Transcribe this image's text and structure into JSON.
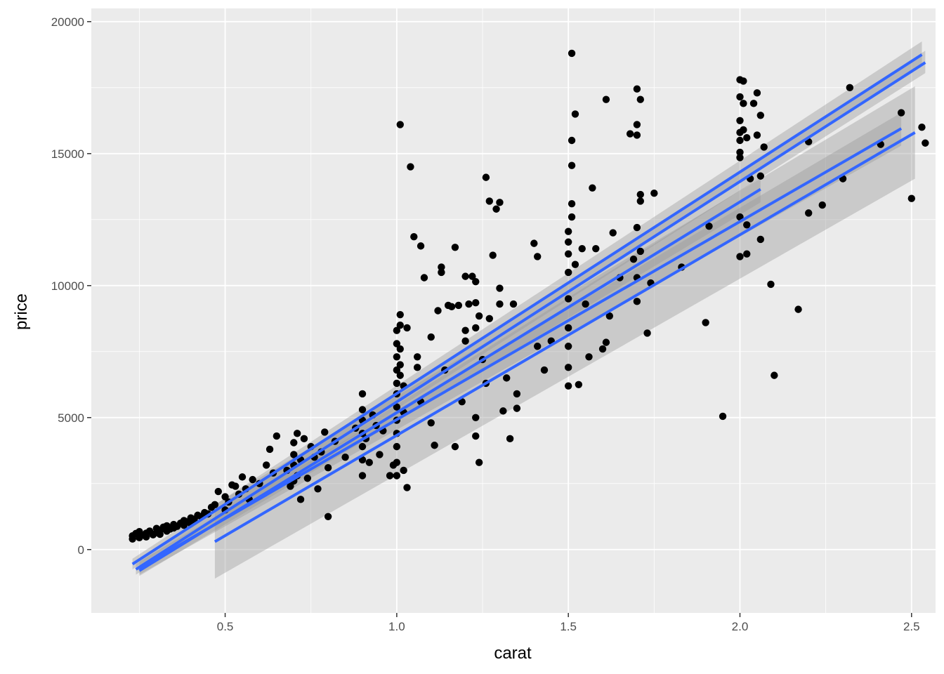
{
  "chart_data": {
    "type": "scatter",
    "title": "",
    "xlabel": "carat",
    "ylabel": "price",
    "xlim": [
      0.11,
      2.57
    ],
    "ylim": [
      -2400,
      20500
    ],
    "x_ticks": [
      0.5,
      1.0,
      1.5,
      2.0,
      2.5
    ],
    "x_tick_labels": [
      "0.5",
      "1.0",
      "1.5",
      "2.0",
      "2.5"
    ],
    "y_ticks": [
      0,
      5000,
      10000,
      15000,
      20000
    ],
    "y_tick_labels": [
      "0",
      "5000",
      "10000",
      "15000",
      "20000"
    ],
    "grid": true,
    "legend": "none",
    "colors": {
      "panel": "#ebebeb",
      "grid": "#ffffff",
      "points": "#000000",
      "fit_line": "#3366ff",
      "ribbon": "#999999"
    },
    "series": [
      {
        "type": "scatter",
        "points": [
          [
            0.23,
            400
          ],
          [
            0.23,
            520
          ],
          [
            0.24,
            610
          ],
          [
            0.25,
            450
          ],
          [
            0.25,
            680
          ],
          [
            0.26,
            550
          ],
          [
            0.27,
            480
          ],
          [
            0.27,
            620
          ],
          [
            0.28,
            700
          ],
          [
            0.29,
            560
          ],
          [
            0.3,
            650
          ],
          [
            0.3,
            800
          ],
          [
            0.31,
            720
          ],
          [
            0.31,
            580
          ],
          [
            0.32,
            850
          ],
          [
            0.33,
            700
          ],
          [
            0.33,
            900
          ],
          [
            0.34,
            780
          ],
          [
            0.35,
            950
          ],
          [
            0.35,
            820
          ],
          [
            0.36,
            880
          ],
          [
            0.37,
            1000
          ],
          [
            0.38,
            920
          ],
          [
            0.38,
            1100
          ],
          [
            0.39,
            1050
          ],
          [
            0.4,
            1200
          ],
          [
            0.4,
            980
          ],
          [
            0.41,
            1150
          ],
          [
            0.42,
            1300
          ],
          [
            0.43,
            1250
          ],
          [
            0.44,
            1400
          ],
          [
            0.45,
            1350
          ],
          [
            0.46,
            1600
          ],
          [
            0.47,
            1700
          ],
          [
            0.48,
            2200
          ],
          [
            0.5,
            1500
          ],
          [
            0.5,
            2000
          ],
          [
            0.51,
            1800
          ],
          [
            0.52,
            2450
          ],
          [
            0.53,
            2400
          ],
          [
            0.54,
            2100
          ],
          [
            0.55,
            2750
          ],
          [
            0.56,
            2300
          ],
          [
            0.57,
            1900
          ],
          [
            0.58,
            2650
          ],
          [
            0.6,
            2500
          ],
          [
            0.62,
            3200
          ],
          [
            0.63,
            3800
          ],
          [
            0.64,
            2900
          ],
          [
            0.65,
            4300
          ],
          [
            0.68,
            3000
          ],
          [
            0.69,
            2400
          ],
          [
            0.7,
            2600
          ],
          [
            0.7,
            3200
          ],
          [
            0.7,
            3600
          ],
          [
            0.7,
            4050
          ],
          [
            0.71,
            4400
          ],
          [
            0.71,
            2800
          ],
          [
            0.72,
            3400
          ],
          [
            0.72,
            1900
          ],
          [
            0.73,
            4200
          ],
          [
            0.74,
            2700
          ],
          [
            0.75,
            3900
          ],
          [
            0.76,
            3500
          ],
          [
            0.77,
            2300
          ],
          [
            0.78,
            3700
          ],
          [
            0.79,
            4450
          ],
          [
            0.8,
            1250
          ],
          [
            0.8,
            3100
          ],
          [
            0.82,
            4100
          ],
          [
            0.85,
            3500
          ],
          [
            0.88,
            4600
          ],
          [
            0.9,
            2800
          ],
          [
            0.9,
            3400
          ],
          [
            0.9,
            3900
          ],
          [
            0.9,
            4400
          ],
          [
            0.9,
            4900
          ],
          [
            0.9,
            5300
          ],
          [
            0.9,
            5900
          ],
          [
            0.91,
            4200
          ],
          [
            0.92,
            3300
          ],
          [
            0.93,
            5100
          ],
          [
            0.94,
            4700
          ],
          [
            0.95,
            3600
          ],
          [
            0.96,
            4500
          ],
          [
            0.98,
            2800
          ],
          [
            0.99,
            3200
          ],
          [
            1.0,
            2800
          ],
          [
            1.0,
            3300
          ],
          [
            1.0,
            3900
          ],
          [
            1.0,
            4400
          ],
          [
            1.0,
            4900
          ],
          [
            1.0,
            5400
          ],
          [
            1.0,
            5900
          ],
          [
            1.0,
            6300
          ],
          [
            1.0,
            6800
          ],
          [
            1.0,
            7300
          ],
          [
            1.0,
            7800
          ],
          [
            1.0,
            8300
          ],
          [
            1.01,
            8900
          ],
          [
            1.01,
            8500
          ],
          [
            1.01,
            7600
          ],
          [
            1.01,
            7000
          ],
          [
            1.01,
            6600
          ],
          [
            1.01,
            16100
          ],
          [
            1.02,
            3000
          ],
          [
            1.02,
            5200
          ],
          [
            1.02,
            6200
          ],
          [
            1.03,
            2350
          ],
          [
            1.03,
            8400
          ],
          [
            1.04,
            14500
          ],
          [
            1.05,
            11850
          ],
          [
            1.06,
            6900
          ],
          [
            1.06,
            7300
          ],
          [
            1.07,
            11500
          ],
          [
            1.07,
            5600
          ],
          [
            1.08,
            10300
          ],
          [
            1.1,
            8050
          ],
          [
            1.1,
            4800
          ],
          [
            1.11,
            3950
          ],
          [
            1.12,
            9050
          ],
          [
            1.13,
            10700
          ],
          [
            1.13,
            10500
          ],
          [
            1.14,
            6800
          ],
          [
            1.15,
            9250
          ],
          [
            1.16,
            9200
          ],
          [
            1.17,
            3900
          ],
          [
            1.17,
            11450
          ],
          [
            1.18,
            9250
          ],
          [
            1.19,
            5600
          ],
          [
            1.2,
            10350
          ],
          [
            1.2,
            8300
          ],
          [
            1.2,
            7900
          ],
          [
            1.21,
            9300
          ],
          [
            1.22,
            10350
          ],
          [
            1.23,
            10150
          ],
          [
            1.23,
            9350
          ],
          [
            1.23,
            8400
          ],
          [
            1.23,
            5000
          ],
          [
            1.23,
            4300
          ],
          [
            1.24,
            3300
          ],
          [
            1.24,
            8850
          ],
          [
            1.25,
            7200
          ],
          [
            1.26,
            14100
          ],
          [
            1.26,
            6300
          ],
          [
            1.27,
            13200
          ],
          [
            1.27,
            8750
          ],
          [
            1.28,
            11150
          ],
          [
            1.29,
            12900
          ],
          [
            1.3,
            13150
          ],
          [
            1.3,
            9900
          ],
          [
            1.3,
            9300
          ],
          [
            1.31,
            5250
          ],
          [
            1.32,
            6500
          ],
          [
            1.33,
            4200
          ],
          [
            1.34,
            9300
          ],
          [
            1.35,
            5900
          ],
          [
            1.35,
            5350
          ],
          [
            1.4,
            11600
          ],
          [
            1.41,
            11100
          ],
          [
            1.41,
            7700
          ],
          [
            1.43,
            6800
          ],
          [
            1.45,
            7900
          ],
          [
            1.5,
            6200
          ],
          [
            1.5,
            6900
          ],
          [
            1.5,
            7700
          ],
          [
            1.5,
            8400
          ],
          [
            1.5,
            9500
          ],
          [
            1.5,
            10500
          ],
          [
            1.5,
            11200
          ],
          [
            1.5,
            11650
          ],
          [
            1.5,
            12050
          ],
          [
            1.51,
            12600
          ],
          [
            1.51,
            13100
          ],
          [
            1.51,
            14550
          ],
          [
            1.51,
            15500
          ],
          [
            1.51,
            18800
          ],
          [
            1.52,
            16500
          ],
          [
            1.52,
            10800
          ],
          [
            1.53,
            6250
          ],
          [
            1.54,
            11400
          ],
          [
            1.55,
            9300
          ],
          [
            1.56,
            7300
          ],
          [
            1.57,
            13700
          ],
          [
            1.58,
            11400
          ],
          [
            1.6,
            7600
          ],
          [
            1.61,
            17050
          ],
          [
            1.61,
            7850
          ],
          [
            1.62,
            8850
          ],
          [
            1.63,
            12000
          ],
          [
            1.65,
            10300
          ],
          [
            1.68,
            15750
          ],
          [
            1.69,
            11000
          ],
          [
            1.7,
            9400
          ],
          [
            1.7,
            10300
          ],
          [
            1.7,
            12200
          ],
          [
            1.7,
            15700
          ],
          [
            1.7,
            16100
          ],
          [
            1.7,
            17450
          ],
          [
            1.71,
            17050
          ],
          [
            1.71,
            13450
          ],
          [
            1.71,
            13200
          ],
          [
            1.71,
            11300
          ],
          [
            1.73,
            8200
          ],
          [
            1.74,
            10100
          ],
          [
            1.75,
            13500
          ],
          [
            1.83,
            10700
          ],
          [
            1.9,
            8600
          ],
          [
            1.91,
            12250
          ],
          [
            1.95,
            5050
          ],
          [
            2.0,
            11100
          ],
          [
            2.0,
            12600
          ],
          [
            2.0,
            14850
          ],
          [
            2.0,
            15050
          ],
          [
            2.0,
            15500
          ],
          [
            2.0,
            15800
          ],
          [
            2.0,
            16250
          ],
          [
            2.0,
            17150
          ],
          [
            2.0,
            17800
          ],
          [
            2.01,
            17750
          ],
          [
            2.01,
            16900
          ],
          [
            2.01,
            15900
          ],
          [
            2.02,
            15600
          ],
          [
            2.02,
            12300
          ],
          [
            2.02,
            11200
          ],
          [
            2.03,
            14050
          ],
          [
            2.04,
            16900
          ],
          [
            2.05,
            17300
          ],
          [
            2.05,
            15700
          ],
          [
            2.06,
            14150
          ],
          [
            2.06,
            16450
          ],
          [
            2.06,
            11750
          ],
          [
            2.07,
            15250
          ],
          [
            2.09,
            10050
          ],
          [
            2.1,
            6600
          ],
          [
            2.17,
            9100
          ],
          [
            2.2,
            15450
          ],
          [
            2.2,
            12750
          ],
          [
            2.24,
            13050
          ],
          [
            2.3,
            14050
          ],
          [
            2.32,
            17500
          ],
          [
            2.41,
            15350
          ],
          [
            2.47,
            16550
          ],
          [
            2.5,
            13300
          ],
          [
            2.53,
            16000
          ],
          [
            2.54,
            15400
          ]
        ]
      },
      {
        "type": "line",
        "fit": "linear",
        "x": [
          0.23,
          2.53
        ],
        "y": [
          -550,
          18750
        ],
        "ribbon_low": [
          -750,
          18300
        ],
        "ribbon_high": [
          -350,
          19250
        ]
      },
      {
        "type": "line",
        "fit": "linear",
        "x": [
          0.24,
          2.54
        ],
        "y": [
          -750,
          18450
        ],
        "ribbon_low": [
          -950,
          18050
        ],
        "ribbon_high": [
          -550,
          18900
        ]
      },
      {
        "type": "line",
        "fit": "linear",
        "x": [
          0.25,
          2.06
        ],
        "y": [
          -800,
          13650
        ],
        "ribbon_low": [
          -1000,
          13150
        ],
        "ribbon_high": [
          -600,
          14100
        ]
      },
      {
        "type": "line",
        "fit": "linear",
        "x": [
          0.25,
          2.47
        ],
        "y": [
          -700,
          15950
        ],
        "ribbon_low": [
          -950,
          15300
        ],
        "ribbon_high": [
          -450,
          16550
        ]
      },
      {
        "type": "line",
        "fit": "linear",
        "x": [
          0.47,
          2.51
        ],
        "y": [
          300,
          15800
        ],
        "ribbon_low": [
          -1100,
          14050
        ],
        "ribbon_high": [
          1700,
          17550
        ]
      }
    ]
  }
}
